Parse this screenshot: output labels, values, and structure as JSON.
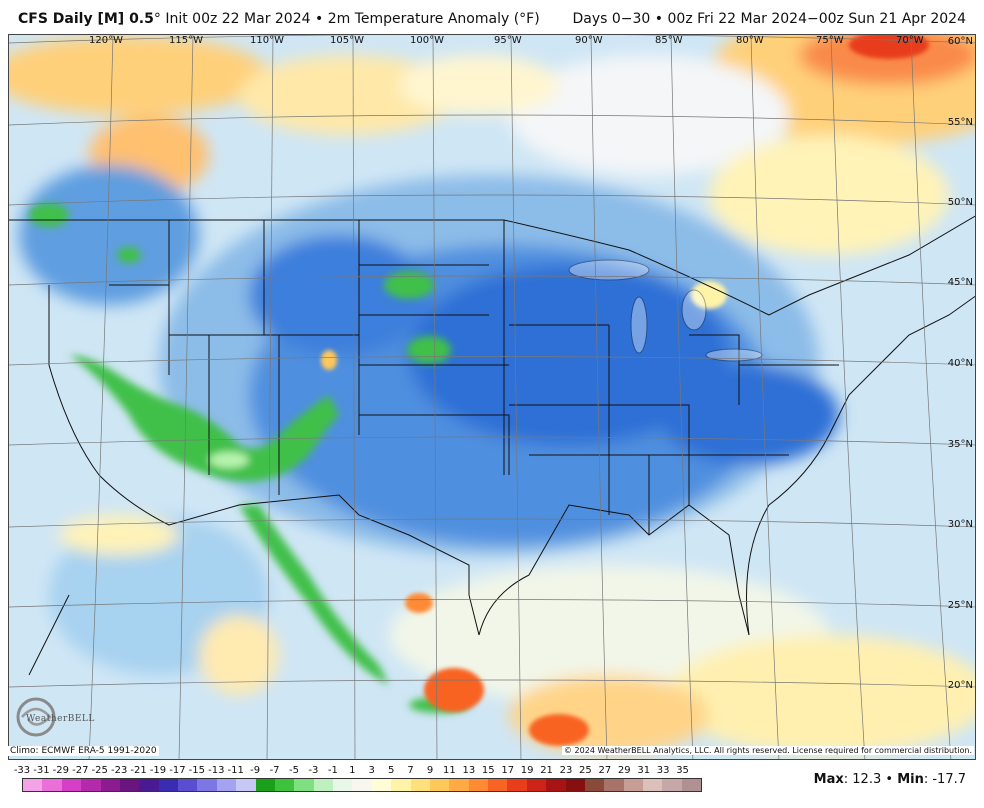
{
  "header": {
    "model": "CFS Daily [M] 0.5",
    "model_suffix": "°",
    "init": "Init 00z 22 Mar 2024",
    "separator": "•",
    "variable": "2m Temperature Anomaly (°F)",
    "range": "Days 0−30 • 00z Fri 22 Mar 2024−00z Sun 21 Apr 2024"
  },
  "map": {
    "lon_labels": [
      "120°W",
      "115°W",
      "110°W",
      "105°W",
      "100°W",
      "95°W",
      "90°W",
      "85°W",
      "80°W",
      "75°W",
      "70°W"
    ],
    "lat_labels": [
      "60°N",
      "55°N",
      "50°N",
      "45°N",
      "40°N",
      "35°N",
      "30°N",
      "25°N",
      "20°N"
    ],
    "climo": "Climo: ECMWF ERA-5 1991-2020",
    "copyright": "© 2024 WeatherBELL Analytics, LLC. All rights reserved. License required for commercial distribution.",
    "logo_text": "WeatherBELL",
    "logo_icon": "swirl-logo-icon"
  },
  "legend": {
    "labels": [
      "-33",
      "-31",
      "-29",
      "-27",
      "-25",
      "-23",
      "-21",
      "-19",
      "-17",
      "-15",
      "-13",
      "-11",
      "-9",
      "-7",
      "-5",
      "-3",
      "-1",
      "1",
      "3",
      "5",
      "7",
      "9",
      "11",
      "13",
      "15",
      "17",
      "19",
      "21",
      "23",
      "25",
      "27",
      "29",
      "31",
      "33",
      "35"
    ],
    "colors": [
      "#f5a3e8",
      "#ea6fd9",
      "#d53fc7",
      "#b32aab",
      "#8c1c8f",
      "#6a1480",
      "#4a1a94",
      "#3a2cb0",
      "#5b4dd0",
      "#7c77e5",
      "#a3a3f0",
      "#c8c8f7",
      "#1aa01a",
      "#3cc23c",
      "#7ee07e",
      "#bff0bf",
      "#e8f7e8",
      "#f7f7f0",
      "#fffcd8",
      "#fff3a8",
      "#ffe07a",
      "#ffc85a",
      "#ffaa44",
      "#ff8a34",
      "#f86424",
      "#e83e1c",
      "#cc2418",
      "#a81414",
      "#861010",
      "#8a4a3a",
      "#a8746a",
      "#c79e96",
      "#dcc0ba",
      "#c7a8a8",
      "#b09090"
    ],
    "stats_max_label": "Max",
    "stats_max": "12.3",
    "stats_sep": "•",
    "stats_min_label": "Min",
    "stats_min": "-17.7"
  }
}
